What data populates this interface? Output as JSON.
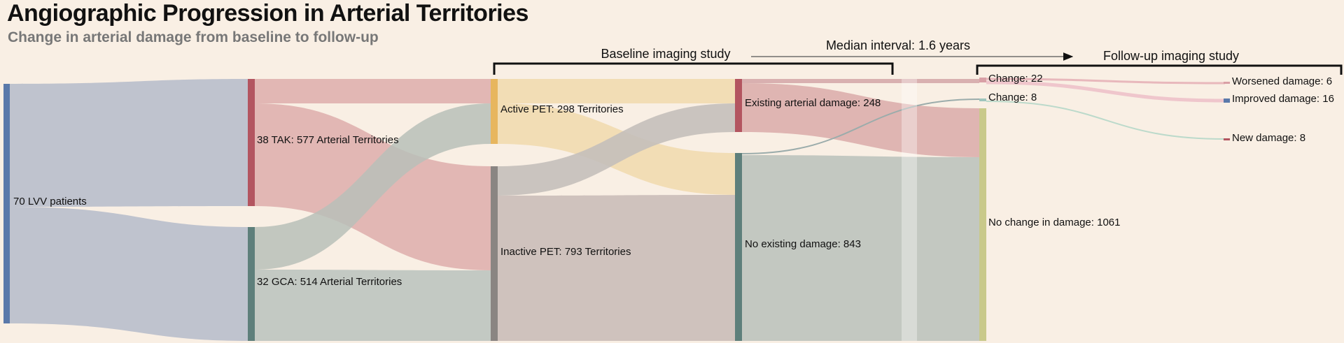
{
  "header": {
    "title": "Angiographic Progression in Arterial Territories",
    "subtitle": "Change in arterial damage from baseline to follow-up"
  },
  "annotations": {
    "baseline": "Baseline imaging study",
    "interval": "Median interval: 1.6 years",
    "followup": "Follow-up imaging study"
  },
  "colors": {
    "background": "#f9efe4",
    "blue": "#5a79aa",
    "red": "#b35560",
    "teal": "#5e7f7b",
    "orange": "#e7b65e",
    "gray": "#8a8582",
    "olive": "#c9c98a",
    "teal_light": "#9fc5bd"
  },
  "nodes": [
    {
      "id": "lvv",
      "label": "70 LVV patients",
      "value": 70,
      "color": "#5a79aa"
    },
    {
      "id": "tak",
      "label": "38 TAK: 577 Arterial Territories",
      "value": 577,
      "color": "#b35560"
    },
    {
      "id": "gca",
      "label": "32 GCA: 514 Arterial Territories",
      "value": 514,
      "color": "#5e7f7b"
    },
    {
      "id": "active",
      "label": "Active PET: 298 Territories",
      "value": 298,
      "color": "#e7b65e"
    },
    {
      "id": "inactive",
      "label": "Inactive PET: 793 Territories",
      "value": 793,
      "color": "#8a8582"
    },
    {
      "id": "existing",
      "label": "Existing arterial damage: 248",
      "value": 248,
      "color": "#b35560"
    },
    {
      "id": "noexist",
      "label": "No existing damage: 843",
      "value": 843,
      "color": "#5e7f7b"
    },
    {
      "id": "change22",
      "label": "Change: 22",
      "value": 22,
      "color": "#d9a0a6"
    },
    {
      "id": "change8",
      "label": "Change: 8",
      "value": 8,
      "color": "#9fc5bd"
    },
    {
      "id": "nochange",
      "label": "No change in damage: 1061",
      "value": 1061,
      "color": "#c9c98a"
    },
    {
      "id": "worsened",
      "label": "Worsened damage: 6",
      "value": 6,
      "color": "#d9a0a6"
    },
    {
      "id": "improved",
      "label": "Improved damage: 16",
      "value": 16,
      "color": "#5a79aa"
    },
    {
      "id": "newdmg",
      "label": "New damage: 8",
      "value": 8,
      "color": "#b35560"
    }
  ]
}
